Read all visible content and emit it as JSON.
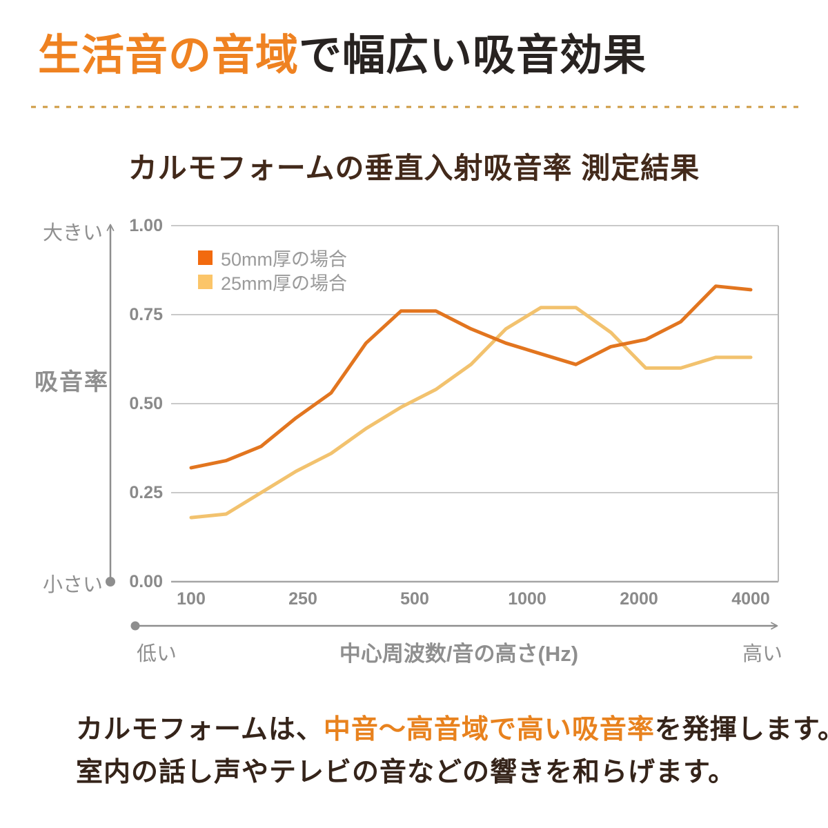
{
  "header": {
    "highlight": "生活音の音域",
    "rest": "で幅広い吸音効果"
  },
  "chart": {
    "title": "カルモフォームの垂直入射吸音率 測定結果",
    "y_axis": {
      "top_label": "大きい",
      "bottom_label": "小さい",
      "axis_label": "吸音率",
      "ticks": [
        "1.00",
        "0.75",
        "0.50",
        "0.25",
        "0.00"
      ]
    },
    "x_axis": {
      "left_label": "低い",
      "right_label": "高い",
      "axis_label": "中心周波数/音の高さ(Hz)",
      "ticks": [
        "100",
        "250",
        "500",
        "1000",
        "2000",
        "4000"
      ]
    },
    "legend": [
      {
        "label": "50mm厚の場合",
        "color": "#F26A0E"
      },
      {
        "label": "25mm厚の場合",
        "color": "#FBC569"
      }
    ]
  },
  "chart_data": {
    "type": "line",
    "title": "カルモフォームの垂直入射吸音率 測定結果",
    "xlabel": "中心周波数/音の高さ(Hz)",
    "ylabel": "吸音率",
    "ylim": [
      0,
      1
    ],
    "y_tick_values": [
      0,
      0.25,
      0.5,
      0.75,
      1.0
    ],
    "x_tick_labels": [
      "100",
      "250",
      "500",
      "1000",
      "2000",
      "4000"
    ],
    "x_scale": "log-like categories, 1/3-octave bands equally spaced",
    "grid": true,
    "legend_position": "top-left",
    "x": [
      100,
      125,
      160,
      200,
      250,
      315,
      400,
      500,
      630,
      800,
      1000,
      1250,
      1600,
      2000,
      2500,
      3150,
      4000
    ],
    "series": [
      {
        "name": "50mm厚の場合",
        "color": "#E2751F",
        "values": [
          0.32,
          0.34,
          0.38,
          0.46,
          0.53,
          0.67,
          0.76,
          0.76,
          0.71,
          0.67,
          0.64,
          0.61,
          0.66,
          0.68,
          0.73,
          0.83,
          0.82
        ]
      },
      {
        "name": "25mm厚の場合",
        "color": "#F2C26E",
        "values": [
          0.18,
          0.19,
          0.25,
          0.31,
          0.36,
          0.43,
          0.49,
          0.54,
          0.61,
          0.71,
          0.77,
          0.77,
          0.7,
          0.6,
          0.6,
          0.63,
          0.63
        ]
      }
    ]
  },
  "footer": {
    "line1_pre": "カルモフォームは、",
    "line1_highlight": "中音〜高音域で高い吸音率",
    "line1_post": "を発揮します。",
    "line2": "室内の話し声やテレビの音などの響きを和らげます。"
  },
  "colors": {
    "accent_orange": "#EF8221",
    "series_50mm": "#E2751F",
    "series_25mm": "#F2C26E",
    "title_brown": "#42291A",
    "divider": "#CE9A41"
  }
}
